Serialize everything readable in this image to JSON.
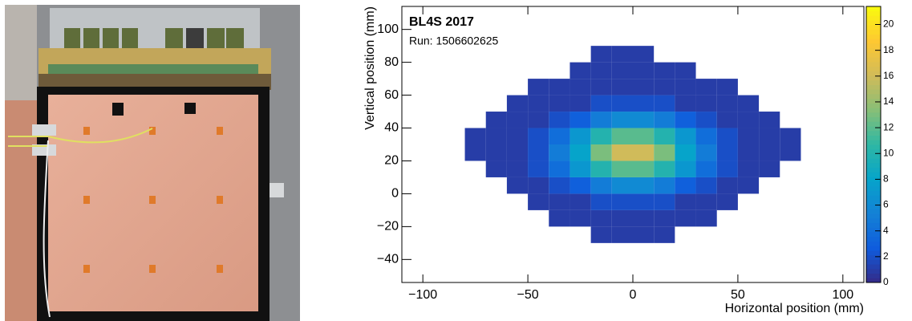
{
  "chart_data": {
    "type": "hist2d",
    "title": "BL4S 2017",
    "subtitle": "Run: 1506602625",
    "x_label": "Horizontal position (mm)",
    "y_label": "Vertical position (mm)",
    "xlim": [
      -110,
      110
    ],
    "ylim": [
      -54,
      114
    ],
    "zlim": [
      0,
      21.4
    ],
    "xticks": [
      {
        "value": -100,
        "label": "−100"
      },
      {
        "value": -50,
        "label": "−50"
      },
      0,
      50,
      100
    ],
    "yticks": [
      {
        "value": -40,
        "label": "−40"
      },
      {
        "value": -20,
        "label": "−20"
      },
      0,
      20,
      40,
      60,
      80,
      100
    ],
    "zticks": [
      0,
      2,
      4,
      6,
      8,
      10,
      12,
      14,
      16,
      18,
      20
    ],
    "colormap": [
      "#352a87",
      "#0f5cdd",
      "#1481d6",
      "#06a4ca",
      "#2eb7a4",
      "#87bf77",
      "#d1bb59",
      "#fec832",
      "#f9fb0e"
    ],
    "xbins": [
      -110,
      -100,
      -90,
      -80,
      -70,
      -60,
      -50,
      -40,
      -30,
      -20,
      -10,
      0,
      10,
      20,
      30,
      40,
      50,
      60,
      70,
      80,
      90,
      100,
      110
    ],
    "ybins": [
      -50,
      -40,
      -30,
      -20,
      -10,
      0,
      10,
      20,
      30,
      40,
      50,
      60,
      70,
      80,
      90,
      100,
      110
    ],
    "z": [
      [
        0,
        0,
        0,
        0,
        0,
        0,
        0,
        0,
        0,
        0,
        0,
        0,
        0,
        0,
        0,
        0,
        0,
        0,
        0,
        0,
        0,
        0
      ],
      [
        0,
        0,
        0,
        0,
        0,
        0,
        0,
        0,
        0,
        0,
        0,
        0,
        0,
        0,
        0,
        0,
        0,
        0,
        0,
        0,
        0,
        0
      ],
      [
        0,
        0,
        0,
        0,
        0,
        0,
        0,
        0,
        0,
        1,
        1,
        1,
        1,
        0,
        0,
        0,
        0,
        0,
        0,
        0,
        0,
        0
      ],
      [
        0,
        0,
        0,
        0,
        0,
        0,
        0,
        1,
        1,
        1,
        1,
        1,
        1,
        1,
        1,
        0,
        0,
        0,
        0,
        0,
        0,
        0
      ],
      [
        0,
        0,
        0,
        0,
        0,
        0,
        1,
        1,
        1,
        2,
        2,
        2,
        2,
        1,
        1,
        1,
        0,
        0,
        0,
        0,
        0,
        0
      ],
      [
        0,
        0,
        0,
        0,
        0,
        1,
        1,
        2,
        3,
        5,
        6,
        6,
        5,
        3,
        2,
        1,
        1,
        0,
        0,
        0,
        0,
        0
      ],
      [
        0,
        0,
        0,
        0,
        1,
        1,
        2,
        4,
        7,
        10,
        12,
        12,
        10,
        7,
        4,
        2,
        1,
        1,
        0,
        0,
        0,
        0
      ],
      [
        0,
        0,
        0,
        1,
        1,
        1,
        2,
        5,
        8,
        13,
        16,
        16,
        13,
        8,
        5,
        2,
        1,
        1,
        1,
        0,
        0,
        0
      ],
      [
        0,
        0,
        0,
        1,
        1,
        1,
        2,
        4,
        7,
        10,
        12,
        12,
        10,
        7,
        4,
        2,
        1,
        1,
        1,
        0,
        0,
        0
      ],
      [
        0,
        0,
        0,
        0,
        1,
        1,
        1,
        2,
        3,
        5,
        6,
        6,
        5,
        3,
        2,
        1,
        1,
        1,
        0,
        0,
        0,
        0
      ],
      [
        0,
        0,
        0,
        0,
        0,
        1,
        1,
        1,
        1,
        2,
        2,
        2,
        2,
        1,
        1,
        1,
        1,
        0,
        0,
        0,
        0,
        0
      ],
      [
        0,
        0,
        0,
        0,
        0,
        0,
        1,
        1,
        1,
        1,
        1,
        1,
        1,
        1,
        1,
        1,
        0,
        0,
        0,
        0,
        0,
        0
      ],
      [
        0,
        0,
        0,
        0,
        0,
        0,
        0,
        0,
        1,
        1,
        1,
        1,
        1,
        1,
        0,
        0,
        0,
        0,
        0,
        0,
        0,
        0
      ],
      [
        0,
        0,
        0,
        0,
        0,
        0,
        0,
        0,
        0,
        1,
        1,
        1,
        0,
        0,
        0,
        0,
        0,
        0,
        0,
        0,
        0,
        0
      ],
      [
        0,
        0,
        0,
        0,
        0,
        0,
        0,
        0,
        0,
        0,
        0,
        0,
        0,
        0,
        0,
        0,
        0,
        0,
        0,
        0,
        0,
        0
      ],
      [
        0,
        0,
        0,
        0,
        0,
        0,
        0,
        0,
        0,
        0,
        0,
        0,
        0,
        0,
        0,
        0,
        0,
        0,
        0,
        0,
        0,
        0
      ]
    ]
  }
}
